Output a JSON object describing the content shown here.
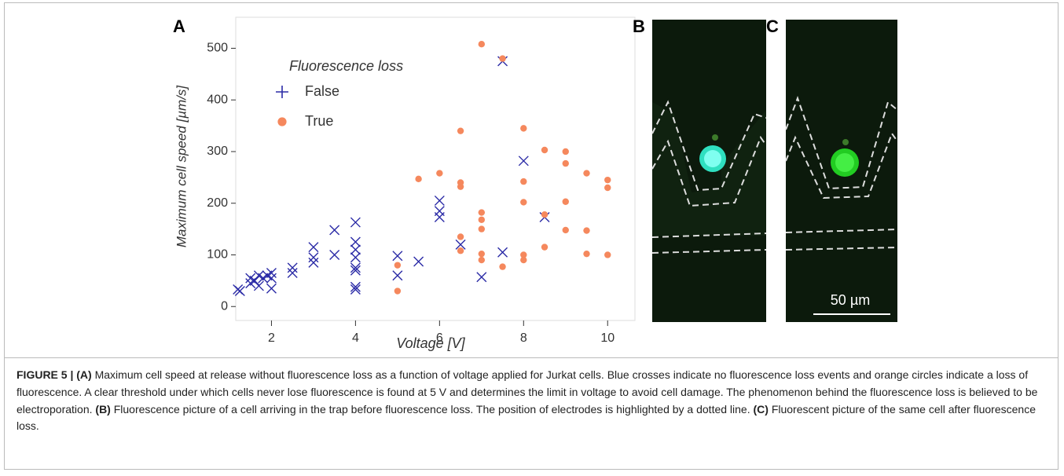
{
  "chart_data": {
    "type": "scatter",
    "panel_label": "A",
    "x_label": "Voltage [V]",
    "y_label": "Maximum cell speed [µm/s]",
    "legend_title": "Fluorescence loss",
    "xlim": [
      1.15,
      10.65
    ],
    "xticks": [
      2,
      4,
      6,
      8,
      10
    ],
    "ylim": [
      -27,
      560
    ],
    "yticks": [
      0,
      100,
      200,
      300,
      400,
      500
    ],
    "series": [
      {
        "name": "False",
        "color": "#2b2ba6",
        "marker": "x",
        "x": [
          1.2,
          1.25,
          1.5,
          1.5,
          1.6,
          1.7,
          1.7,
          1.8,
          1.9,
          2,
          2,
          2,
          2.5,
          2.5,
          3,
          3,
          3,
          3.5,
          3.5,
          4,
          4,
          4,
          4,
          4,
          4,
          4,
          4,
          5,
          5,
          5.5,
          6,
          6,
          6,
          6.5,
          7,
          7.5,
          7.5,
          8,
          8.5
        ],
        "values": [
          33,
          30,
          45,
          55,
          50,
          60,
          40,
          55,
          60,
          65,
          35,
          55,
          65,
          75,
          85,
          95,
          115,
          148,
          100,
          163,
          125,
          110,
          95,
          75,
          70,
          38,
          33,
          98,
          60,
          87,
          205,
          185,
          173,
          120,
          57,
          475,
          105,
          282,
          173
        ]
      },
      {
        "name": "True",
        "color": "#f5885d",
        "marker": "o",
        "x": [
          5,
          5,
          5.5,
          6,
          6.5,
          6.5,
          6.5,
          6.5,
          6.5,
          7,
          7,
          7,
          7,
          7,
          7,
          7.5,
          7.5,
          8,
          8,
          8,
          8,
          8,
          8.5,
          8.5,
          8.5,
          9,
          9,
          9,
          9,
          9.5,
          9.5,
          9.5,
          10,
          10,
          10
        ],
        "values": [
          80,
          30,
          247,
          258,
          340,
          240,
          232,
          135,
          108,
          508,
          182,
          168,
          150,
          102,
          90,
          480,
          77,
          345,
          242,
          202,
          100,
          90,
          303,
          178,
          115,
          300,
          277,
          203,
          148,
          258,
          147,
          102,
          245,
          230,
          100
        ]
      }
    ]
  },
  "panels": [
    {
      "label": "B"
    },
    {
      "label": "C",
      "scale_bar": "50 µm"
    }
  ],
  "caption": [
    {
      "text": "FIGURE 5 | (A)",
      "bold": true
    },
    {
      "text": " Maximum cell speed at release without fluorescence loss as a function of voltage applied for Jurkat cells. Blue crosses indicate no fluorescence loss events and orange circles indicate a loss of fluorescence. A clear threshold under which cells never lose fluorescence is found at 5 V and determines the limit in voltage to avoid cell damage. The phenomenon behind the fluorescence loss is believed to be electroporation. ",
      "bold": false
    },
    {
      "text": "(B)",
      "bold": true
    },
    {
      "text": " Fluorescence picture of a cell arriving in the trap before fluorescence loss. The position of electrodes is highlighted by a dotted line. ",
      "bold": false
    },
    {
      "text": "(C)",
      "bold": true
    },
    {
      "text": " Fluorescent picture of the same cell after fluorescence loss.",
      "bold": false
    }
  ]
}
